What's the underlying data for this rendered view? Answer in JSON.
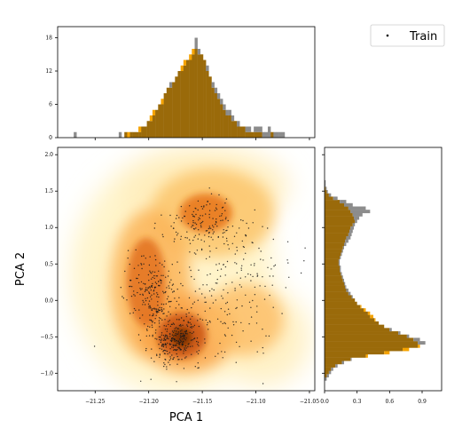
{
  "chart_data": {
    "type": "scatter",
    "xlabel": "PCA 1",
    "ylabel": "PCA 2",
    "xlim": [
      -21.285,
      -21.045
    ],
    "ylim": [
      -1.24,
      2.1
    ],
    "x_ticks": [
      -21.25,
      -21.2,
      -21.15,
      -21.1,
      -21.05
    ],
    "x_tick_labels": [
      "−21.25",
      "−21.20",
      "−21.15",
      "−21.10",
      "−21.05"
    ],
    "y_ticks": [
      -1.0,
      -0.5,
      0.0,
      0.5,
      1.0,
      1.5,
      2.0
    ],
    "y_tick_labels": [
      "−1.0",
      "−0.5",
      "0.0",
      "0.5",
      "1.0",
      "1.5",
      "2.0"
    ],
    "legend": {
      "entries": [
        "Train"
      ],
      "placement": "top-right"
    },
    "grid": false,
    "colors": {
      "kde": "#e8741a",
      "points": "#1a1a1a",
      "hist_gray": "#8c8c8c",
      "hist_orange": "#f5a300",
      "overlap": "#9a6a0a"
    },
    "scatter_clusters": [
      {
        "cx": -21.175,
        "cy": -0.55,
        "sx": 0.012,
        "sy": 0.16,
        "n": 260
      },
      {
        "cx": -21.195,
        "cy": 0.05,
        "sx": 0.013,
        "sy": 0.28,
        "n": 220
      },
      {
        "cx": -21.15,
        "cy": 1.05,
        "sx": 0.018,
        "sy": 0.2,
        "n": 140
      },
      {
        "cx": -21.12,
        "cy": 0.55,
        "sx": 0.025,
        "sy": 0.35,
        "n": 110
      },
      {
        "cx": -21.14,
        "cy": -0.2,
        "sx": 0.03,
        "sy": 0.35,
        "n": 120
      }
    ],
    "top_hist": {
      "range": [
        -21.27,
        -21.06
      ],
      "ylim": [
        0,
        20
      ],
      "y_ticks": [
        0,
        6,
        12,
        18
      ],
      "y_tick_labels": [
        "0",
        "6",
        "12",
        "18"
      ],
      "gray": [
        1,
        0,
        0,
        0,
        0,
        0,
        0,
        0,
        0,
        0,
        0,
        0,
        0,
        0,
        0,
        0,
        1,
        0,
        1,
        0,
        1,
        1,
        1,
        1,
        2,
        2,
        3,
        3,
        4,
        5,
        6,
        6,
        8,
        9,
        10,
        10,
        11,
        12,
        12,
        13,
        14,
        14,
        15,
        18,
        16,
        15,
        14,
        13,
        11,
        10,
        9,
        8,
        7,
        6,
        5,
        5,
        4,
        3,
        3,
        2,
        2,
        2,
        2,
        1,
        2,
        2,
        2,
        1,
        1,
        2,
        1,
        1,
        1,
        1,
        1,
        0,
        0,
        0,
        0,
        0
      ],
      "orange": [
        0,
        0,
        0,
        0,
        0,
        0,
        0,
        0,
        0,
        0,
        0,
        0,
        0,
        0,
        0,
        0,
        0,
        0,
        1,
        1,
        1,
        1,
        1,
        2,
        2,
        2,
        3,
        4,
        5,
        5,
        6,
        7,
        8,
        9,
        9,
        10,
        11,
        12,
        13,
        14,
        14,
        15,
        16,
        16,
        15,
        15,
        14,
        12,
        11,
        9,
        8,
        7,
        6,
        5,
        4,
        4,
        3,
        3,
        2,
        2,
        2,
        1,
        1,
        1,
        1,
        1,
        1,
        0,
        0,
        0,
        1,
        0,
        0,
        0,
        0,
        0,
        0,
        0,
        0,
        0
      ]
    },
    "right_hist": {
      "range": [
        -1.1,
        1.65
      ],
      "xlim": [
        0,
        1.08
      ],
      "x_ticks": [
        0.0,
        0.3,
        0.6,
        0.9
      ],
      "x_tick_labels": [
        "0.0",
        "0.3",
        "0.6",
        "0.9"
      ],
      "gray": [
        0.02,
        0.04,
        0.06,
        0.08,
        0.12,
        0.18,
        0.25,
        0.38,
        0.55,
        0.72,
        0.86,
        0.93,
        0.88,
        0.78,
        0.7,
        0.62,
        0.55,
        0.5,
        0.46,
        0.42,
        0.4,
        0.36,
        0.33,
        0.3,
        0.28,
        0.26,
        0.24,
        0.22,
        0.2,
        0.19,
        0.18,
        0.17,
        0.16,
        0.15,
        0.15,
        0.14,
        0.14,
        0.15,
        0.16,
        0.17,
        0.18,
        0.2,
        0.22,
        0.24,
        0.25,
        0.26,
        0.27,
        0.28,
        0.3,
        0.32,
        0.35,
        0.42,
        0.38,
        0.26,
        0.2,
        0.12,
        0.06,
        0.03,
        0.02,
        0.01,
        0.01
      ],
      "orange": [
        0.0,
        0.02,
        0.04,
        0.06,
        0.1,
        0.16,
        0.24,
        0.4,
        0.6,
        0.78,
        0.88,
        0.86,
        0.82,
        0.76,
        0.68,
        0.6,
        0.55,
        0.5,
        0.47,
        0.45,
        0.42,
        0.38,
        0.34,
        0.3,
        0.28,
        0.25,
        0.22,
        0.2,
        0.19,
        0.18,
        0.17,
        0.16,
        0.15,
        0.14,
        0.14,
        0.13,
        0.13,
        0.14,
        0.15,
        0.16,
        0.17,
        0.18,
        0.19,
        0.2,
        0.22,
        0.23,
        0.24,
        0.26,
        0.28,
        0.27,
        0.26,
        0.24,
        0.22,
        0.18,
        0.14,
        0.08,
        0.04,
        0.02,
        0.01,
        0.0,
        0.0
      ]
    }
  }
}
